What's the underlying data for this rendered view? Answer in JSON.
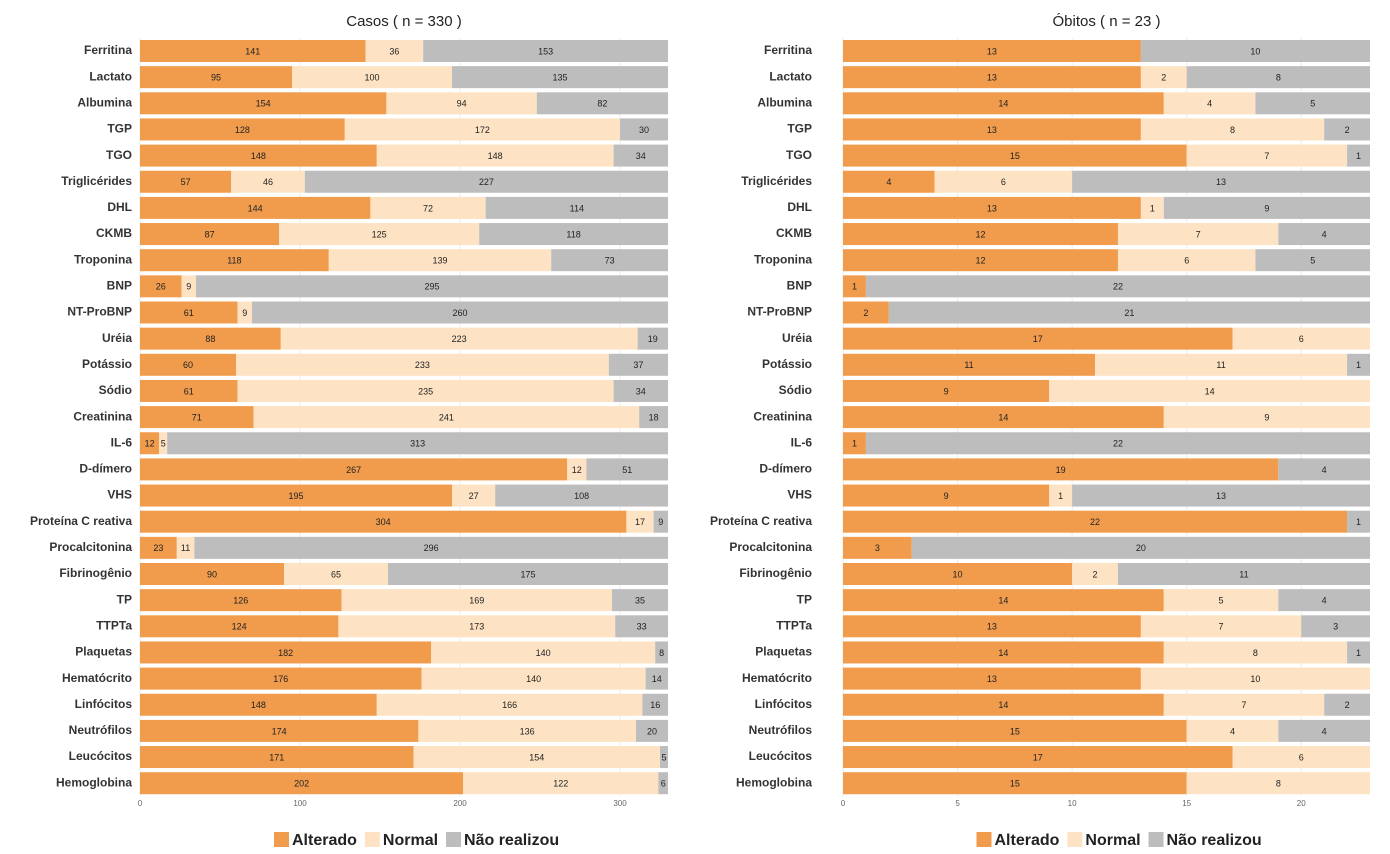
{
  "chart_data": [
    {
      "type": "stacked-bar-horizontal",
      "title": "Casos ( n =  330 )",
      "categories": [
        "Ferritina",
        "Lactato",
        "Albumina",
        "TGP",
        "TGO",
        "Triglicérides",
        "DHL",
        "CKMB",
        "Troponina",
        "BNP",
        "NT-ProBNP",
        "Uréia",
        "Potássio",
        "Sódio",
        "Creatinina",
        "IL-6",
        "D-dímero",
        "VHS",
        "Proteína C reativa",
        "Procalcitonina",
        "Fibrinogênio",
        "TP",
        "TTPTa",
        "Plaquetas",
        "Hematócrito",
        "Linfócitos",
        "Neutrófilos",
        "Leucócitos",
        "Hemoglobina"
      ],
      "series": [
        {
          "name": "Alterado",
          "color": "#f09c4c",
          "values": [
            141,
            95,
            154,
            128,
            148,
            57,
            144,
            87,
            118,
            26,
            61,
            88,
            60,
            61,
            71,
            12,
            267,
            195,
            304,
            23,
            90,
            126,
            124,
            182,
            176,
            148,
            174,
            171,
            202
          ]
        },
        {
          "name": "Normal",
          "color": "#fde3c3",
          "values": [
            36,
            100,
            94,
            172,
            148,
            46,
            72,
            125,
            139,
            9,
            9,
            223,
            233,
            235,
            241,
            5,
            12,
            27,
            17,
            11,
            65,
            169,
            173,
            140,
            140,
            166,
            136,
            154,
            122
          ]
        },
        {
          "name": "Não realizou",
          "color": "#bdbdbd",
          "values": [
            153,
            135,
            82,
            30,
            34,
            227,
            114,
            118,
            73,
            295,
            260,
            19,
            37,
            34,
            18,
            313,
            51,
            108,
            9,
            296,
            175,
            35,
            33,
            8,
            14,
            16,
            20,
            5,
            6
          ]
        }
      ],
      "xlim": [
        0,
        330
      ],
      "xticks": [
        0,
        100,
        200,
        300
      ],
      "grid": true
    },
    {
      "type": "stacked-bar-horizontal",
      "title": "Óbitos ( n =  23 )",
      "categories": [
        "Ferritina",
        "Lactato",
        "Albumina",
        "TGP",
        "TGO",
        "Triglicérides",
        "DHL",
        "CKMB",
        "Troponina",
        "BNP",
        "NT-ProBNP",
        "Uréia",
        "Potássio",
        "Sódio",
        "Creatinina",
        "IL-6",
        "D-dímero",
        "VHS",
        "Proteína C reativa",
        "Procalcitonina",
        "Fibrinogênio",
        "TP",
        "TTPTa",
        "Plaquetas",
        "Hematócrito",
        "Linfócitos",
        "Neutrófilos",
        "Leucócitos",
        "Hemoglobina"
      ],
      "series": [
        {
          "name": "Alterado",
          "color": "#f09c4c",
          "values": [
            13,
            13,
            14,
            13,
            15,
            4,
            13,
            12,
            12,
            1,
            2,
            17,
            11,
            9,
            14,
            1,
            19,
            9,
            22,
            3,
            10,
            14,
            13,
            14,
            13,
            14,
            15,
            17,
            15
          ]
        },
        {
          "name": "Normal",
          "color": "#fde3c3",
          "values": [
            0,
            2,
            4,
            8,
            7,
            6,
            1,
            7,
            6,
            0,
            0,
            6,
            11,
            14,
            9,
            0,
            0,
            1,
            0,
            0,
            2,
            5,
            7,
            8,
            10,
            7,
            4,
            6,
            8
          ]
        },
        {
          "name": "Não realizou",
          "color": "#bdbdbd",
          "values": [
            10,
            8,
            5,
            2,
            1,
            13,
            9,
            4,
            5,
            22,
            21,
            0,
            1,
            0,
            0,
            22,
            4,
            13,
            1,
            20,
            11,
            4,
            3,
            1,
            0,
            2,
            4,
            0,
            0
          ]
        }
      ],
      "xlim": [
        0,
        23
      ],
      "xticks": [
        0,
        5,
        10,
        15,
        20
      ],
      "grid": true
    }
  ]
}
